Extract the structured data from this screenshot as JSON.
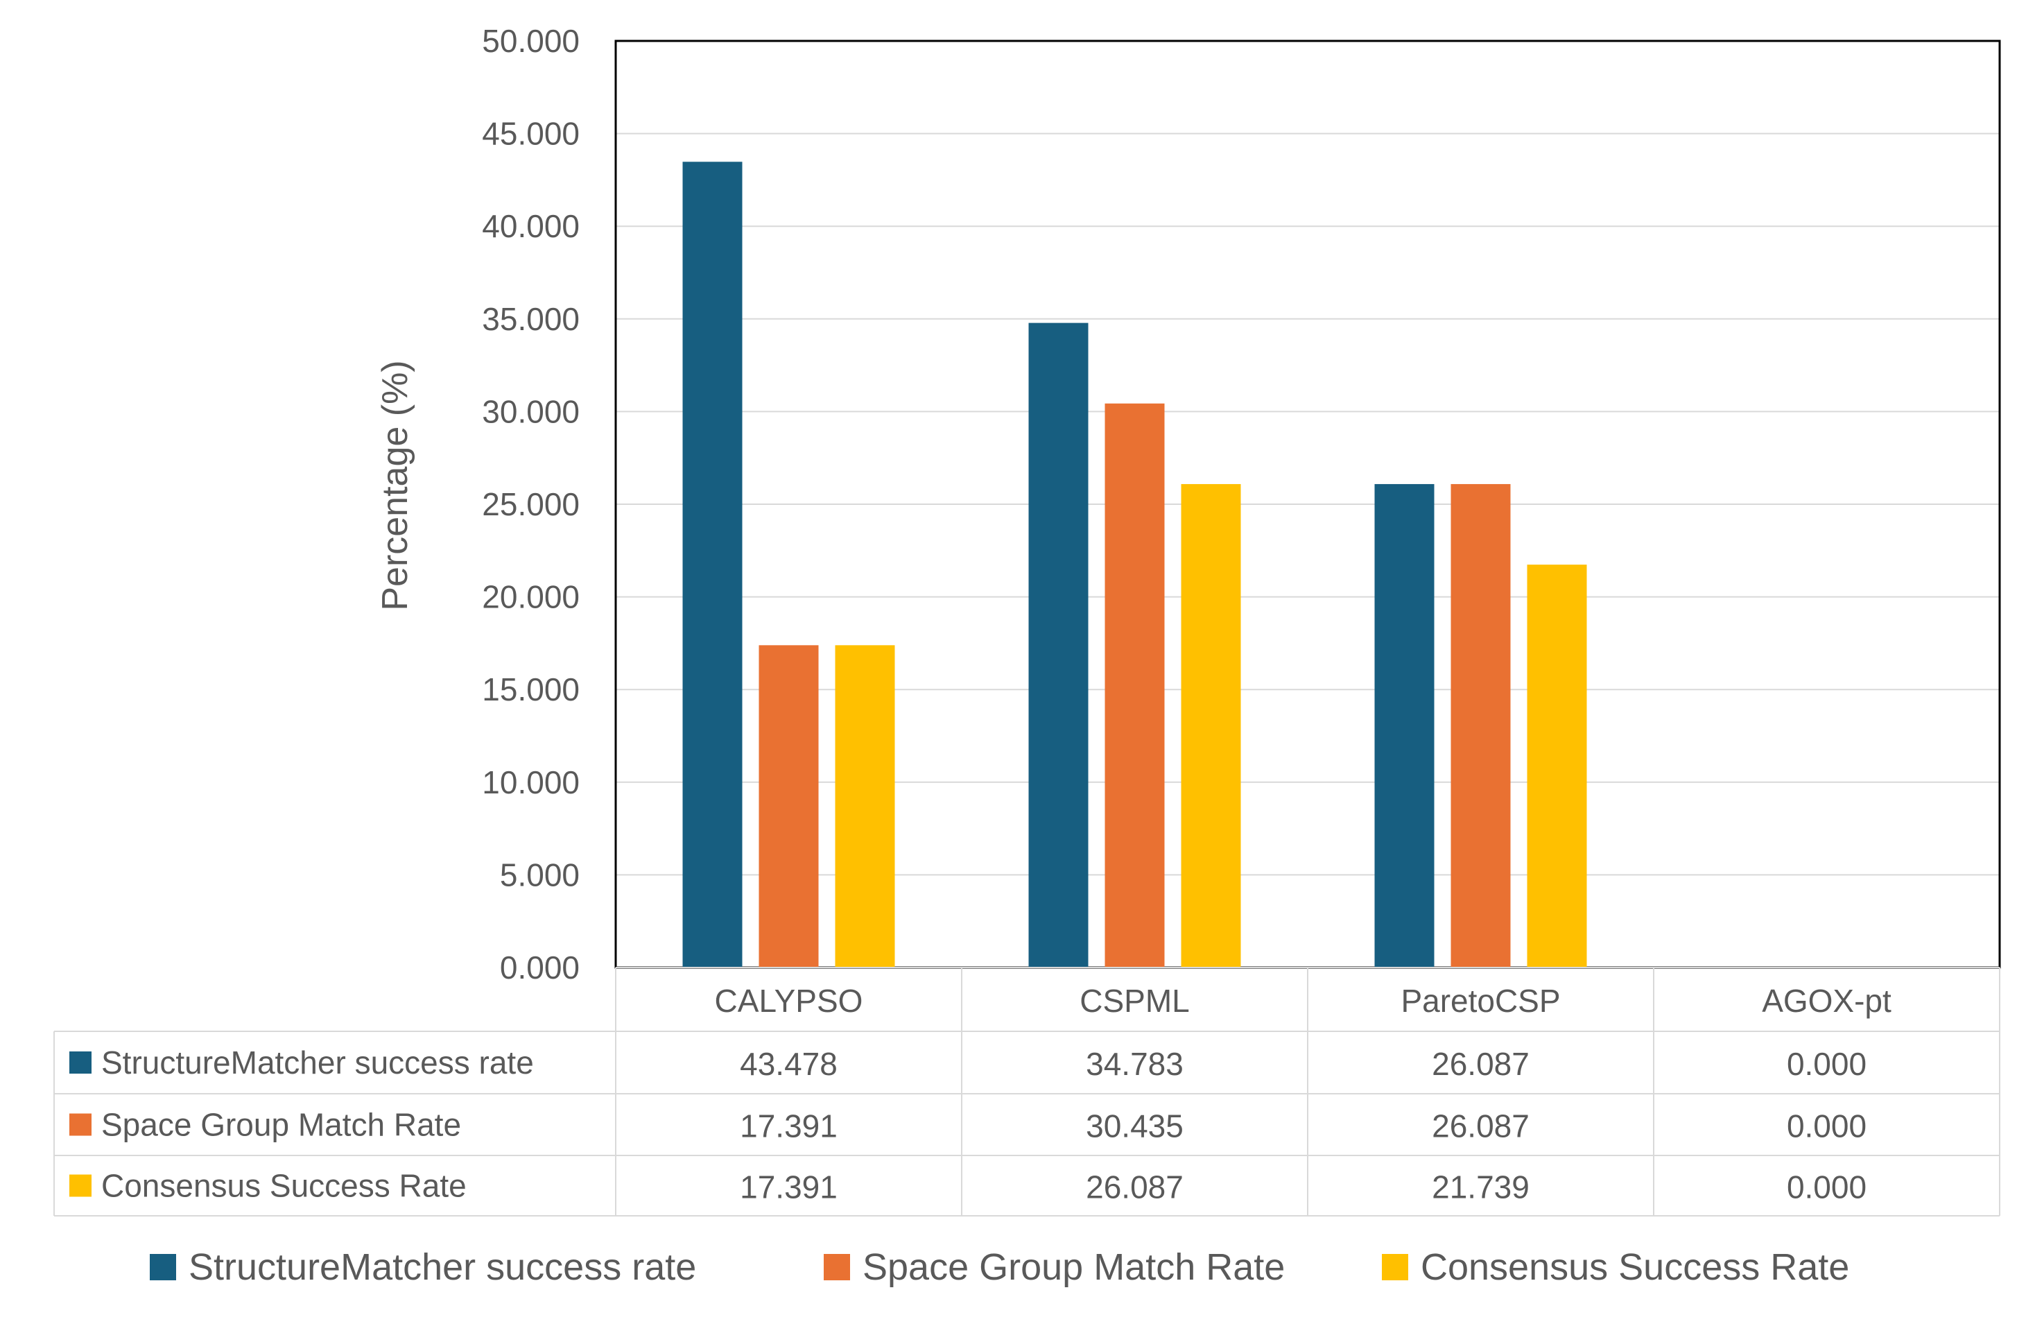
{
  "chart_data": {
    "type": "bar",
    "categories": [
      "CALYPSO",
      "CSPML",
      "ParetoCSP",
      "AGOX-pt"
    ],
    "series": [
      {
        "name": "StructureMatcher success rate",
        "values": [
          43.478,
          34.783,
          26.087,
          0.0
        ],
        "color": "#175e80"
      },
      {
        "name": "Space Group Match Rate",
        "values": [
          17.391,
          30.435,
          26.087,
          0.0
        ],
        "color": "#e97132"
      },
      {
        "name": "Consensus Success Rate",
        "values": [
          17.391,
          26.087,
          21.739,
          0.0
        ],
        "color": "#ffc000"
      }
    ],
    "data_table": {
      "rows": [
        {
          "series": "StructureMatcher success rate",
          "cells": [
            "43.478",
            "34.783",
            "26.087",
            "0.000"
          ]
        },
        {
          "series": "Space Group Match Rate",
          "cells": [
            "17.391",
            "30.435",
            "26.087",
            "0.000"
          ]
        },
        {
          "series": "Consensus Success Rate",
          "cells": [
            "17.391",
            "26.087",
            "21.739",
            "0.000"
          ]
        }
      ]
    },
    "ylabel": "Percentage (%)",
    "ylim": [
      0,
      50
    ],
    "yticks": [
      "0.000",
      "5.000",
      "10.000",
      "15.000",
      "20.000",
      "25.000",
      "30.000",
      "35.000",
      "40.000",
      "45.000",
      "50.000"
    ],
    "grid": true,
    "legend_position": "bottom",
    "colors": {
      "text": "#595959",
      "grid": "#d9d9d9",
      "table_border": "#d9d9d9",
      "plot_border": "#000000"
    }
  }
}
